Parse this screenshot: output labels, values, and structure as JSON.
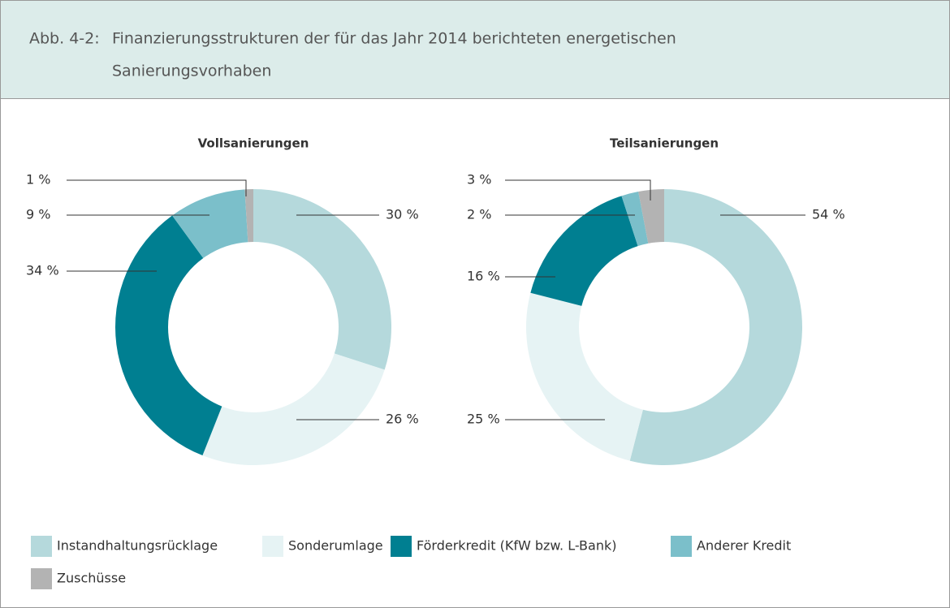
{
  "header": {
    "label": "Abb. 4-2:",
    "title_lines": [
      "Finanzierungsstrukturen der für das Jahr 2014 berichteten energetischen",
      "Sanierungsvorhaben"
    ]
  },
  "chart_data": [
    {
      "type": "donut",
      "title": "Vollsanierungen",
      "categories": [
        "Instandhaltungsrücklage",
        "Sonderumlage",
        "Förderkredit (KfW bzw. L-Bank)",
        "Anderer Kredit",
        "Zuschüsse"
      ],
      "values": [
        30,
        26,
        34,
        9,
        1
      ],
      "value_labels": [
        "30 %",
        "26 %",
        "34 %",
        "9 %",
        "1 %"
      ],
      "colors": [
        "#b5d9dc",
        "#e6f3f4",
        "#007f91",
        "#7bbfca",
        "#b3b3b3"
      ]
    },
    {
      "type": "donut",
      "title": "Teilsanierungen",
      "categories": [
        "Instandhaltungsrücklage",
        "Sonderumlage",
        "Förderkredit (KfW bzw. L-Bank)",
        "Anderer Kredit",
        "Zuschüsse"
      ],
      "values": [
        54,
        25,
        16,
        2,
        3
      ],
      "value_labels": [
        "54 %",
        "25 %",
        "16 %",
        "2 %",
        "3 %"
      ],
      "colors": [
        "#b5d9dc",
        "#e6f3f4",
        "#007f91",
        "#7bbfca",
        "#b3b3b3"
      ]
    }
  ]
}
